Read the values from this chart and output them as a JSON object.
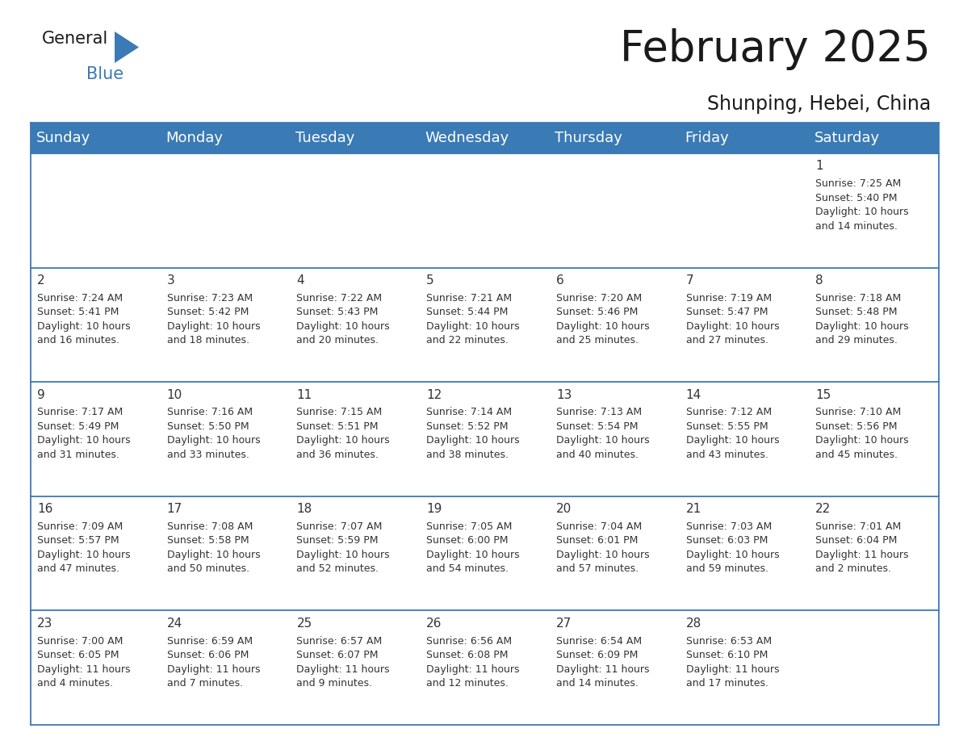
{
  "title": "February 2025",
  "subtitle": "Shunping, Hebei, China",
  "header_color": "#3a7ab5",
  "header_text_color": "#ffffff",
  "cell_bg_color": "#ffffff",
  "alt_row_bg": "#f2f2f2",
  "border_color": "#3a7ab5",
  "row_line_color": "#3a7ab5",
  "text_color": "#333333",
  "days_of_week": [
    "Sunday",
    "Monday",
    "Tuesday",
    "Wednesday",
    "Thursday",
    "Friday",
    "Saturday"
  ],
  "calendar_data": [
    [
      {
        "day": "",
        "info": ""
      },
      {
        "day": "",
        "info": ""
      },
      {
        "day": "",
        "info": ""
      },
      {
        "day": "",
        "info": ""
      },
      {
        "day": "",
        "info": ""
      },
      {
        "day": "",
        "info": ""
      },
      {
        "day": "1",
        "info": "Sunrise: 7:25 AM\nSunset: 5:40 PM\nDaylight: 10 hours\nand 14 minutes."
      }
    ],
    [
      {
        "day": "2",
        "info": "Sunrise: 7:24 AM\nSunset: 5:41 PM\nDaylight: 10 hours\nand 16 minutes."
      },
      {
        "day": "3",
        "info": "Sunrise: 7:23 AM\nSunset: 5:42 PM\nDaylight: 10 hours\nand 18 minutes."
      },
      {
        "day": "4",
        "info": "Sunrise: 7:22 AM\nSunset: 5:43 PM\nDaylight: 10 hours\nand 20 minutes."
      },
      {
        "day": "5",
        "info": "Sunrise: 7:21 AM\nSunset: 5:44 PM\nDaylight: 10 hours\nand 22 minutes."
      },
      {
        "day": "6",
        "info": "Sunrise: 7:20 AM\nSunset: 5:46 PM\nDaylight: 10 hours\nand 25 minutes."
      },
      {
        "day": "7",
        "info": "Sunrise: 7:19 AM\nSunset: 5:47 PM\nDaylight: 10 hours\nand 27 minutes."
      },
      {
        "day": "8",
        "info": "Sunrise: 7:18 AM\nSunset: 5:48 PM\nDaylight: 10 hours\nand 29 minutes."
      }
    ],
    [
      {
        "day": "9",
        "info": "Sunrise: 7:17 AM\nSunset: 5:49 PM\nDaylight: 10 hours\nand 31 minutes."
      },
      {
        "day": "10",
        "info": "Sunrise: 7:16 AM\nSunset: 5:50 PM\nDaylight: 10 hours\nand 33 minutes."
      },
      {
        "day": "11",
        "info": "Sunrise: 7:15 AM\nSunset: 5:51 PM\nDaylight: 10 hours\nand 36 minutes."
      },
      {
        "day": "12",
        "info": "Sunrise: 7:14 AM\nSunset: 5:52 PM\nDaylight: 10 hours\nand 38 minutes."
      },
      {
        "day": "13",
        "info": "Sunrise: 7:13 AM\nSunset: 5:54 PM\nDaylight: 10 hours\nand 40 minutes."
      },
      {
        "day": "14",
        "info": "Sunrise: 7:12 AM\nSunset: 5:55 PM\nDaylight: 10 hours\nand 43 minutes."
      },
      {
        "day": "15",
        "info": "Sunrise: 7:10 AM\nSunset: 5:56 PM\nDaylight: 10 hours\nand 45 minutes."
      }
    ],
    [
      {
        "day": "16",
        "info": "Sunrise: 7:09 AM\nSunset: 5:57 PM\nDaylight: 10 hours\nand 47 minutes."
      },
      {
        "day": "17",
        "info": "Sunrise: 7:08 AM\nSunset: 5:58 PM\nDaylight: 10 hours\nand 50 minutes."
      },
      {
        "day": "18",
        "info": "Sunrise: 7:07 AM\nSunset: 5:59 PM\nDaylight: 10 hours\nand 52 minutes."
      },
      {
        "day": "19",
        "info": "Sunrise: 7:05 AM\nSunset: 6:00 PM\nDaylight: 10 hours\nand 54 minutes."
      },
      {
        "day": "20",
        "info": "Sunrise: 7:04 AM\nSunset: 6:01 PM\nDaylight: 10 hours\nand 57 minutes."
      },
      {
        "day": "21",
        "info": "Sunrise: 7:03 AM\nSunset: 6:03 PM\nDaylight: 10 hours\nand 59 minutes."
      },
      {
        "day": "22",
        "info": "Sunrise: 7:01 AM\nSunset: 6:04 PM\nDaylight: 11 hours\nand 2 minutes."
      }
    ],
    [
      {
        "day": "23",
        "info": "Sunrise: 7:00 AM\nSunset: 6:05 PM\nDaylight: 11 hours\nand 4 minutes."
      },
      {
        "day": "24",
        "info": "Sunrise: 6:59 AM\nSunset: 6:06 PM\nDaylight: 11 hours\nand 7 minutes."
      },
      {
        "day": "25",
        "info": "Sunrise: 6:57 AM\nSunset: 6:07 PM\nDaylight: 11 hours\nand 9 minutes."
      },
      {
        "day": "26",
        "info": "Sunrise: 6:56 AM\nSunset: 6:08 PM\nDaylight: 11 hours\nand 12 minutes."
      },
      {
        "day": "27",
        "info": "Sunrise: 6:54 AM\nSunset: 6:09 PM\nDaylight: 11 hours\nand 14 minutes."
      },
      {
        "day": "28",
        "info": "Sunrise: 6:53 AM\nSunset: 6:10 PM\nDaylight: 11 hours\nand 17 minutes."
      },
      {
        "day": "",
        "info": ""
      }
    ]
  ],
  "logo_color_general": "#1a1a1a",
  "logo_color_blue": "#3a7ab5",
  "logo_triangle_color": "#3a7ab5",
  "title_fontsize": 38,
  "subtitle_fontsize": 17,
  "header_fontsize": 13,
  "day_number_fontsize": 11,
  "info_fontsize": 9
}
